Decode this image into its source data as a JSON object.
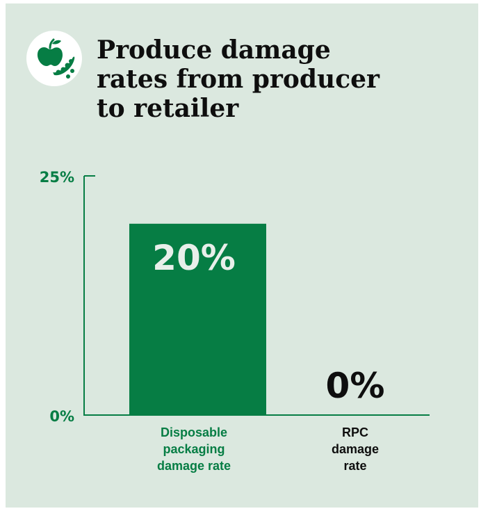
{
  "title_line_1": "Produce damage",
  "title_line_2": "rates from producer",
  "title_line_3": "to retailer",
  "logo_icon": "apple-and-peapod-icon",
  "colors": {
    "background": "#dbe8df",
    "accent": "#067d44",
    "text": "#0e0e0e",
    "bar_label": "#e8efea"
  },
  "chart_data": {
    "type": "bar",
    "ylim": [
      0,
      25
    ],
    "y_ticks": [
      {
        "value": 25,
        "label": "25%"
      },
      {
        "value": 0,
        "label": "0%"
      }
    ],
    "categories": [
      {
        "label_lines": [
          "Disposable",
          "packaging",
          "damage rate"
        ],
        "value": 20,
        "value_label": "20%"
      },
      {
        "label_lines": [
          "RPC",
          "damage",
          "rate"
        ],
        "value": 0,
        "value_label": "0%"
      }
    ]
  }
}
